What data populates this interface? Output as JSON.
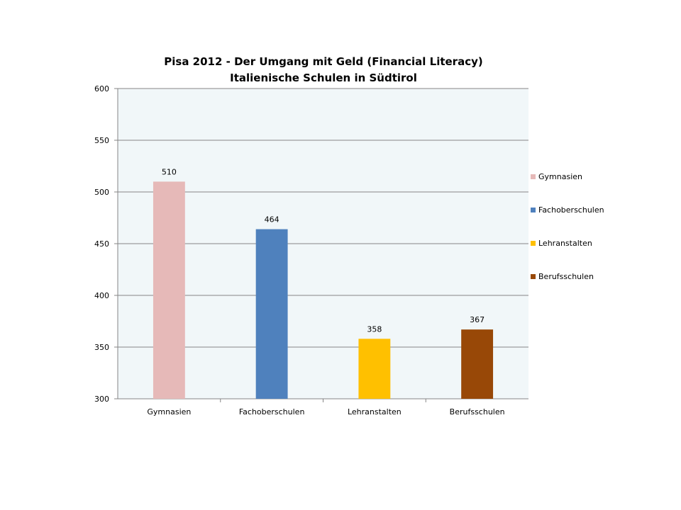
{
  "chart_data": {
    "type": "bar",
    "title": "Pisa 2012 - Der Umgang mit Geld (Financial Literacy)",
    "subtitle": "Italienische Schulen in Südtirol",
    "categories": [
      "Gymnasien",
      "Fachoberschulen",
      "Lehranstalten",
      "Berufsschulen"
    ],
    "values": [
      510,
      464,
      358,
      367
    ],
    "colors": [
      "#e6b9b8",
      "#4f81bd",
      "#ffc000",
      "#984807"
    ],
    "ylim": [
      300,
      600
    ],
    "yticks": [
      300,
      350,
      400,
      450,
      500,
      550,
      600
    ],
    "grid": true,
    "plot_background": "#f1f7f9",
    "legend_position": "right",
    "legend": [
      "Gymnasien",
      "Fachoberschulen",
      "Lehranstalten",
      "Berufsschulen"
    ]
  }
}
